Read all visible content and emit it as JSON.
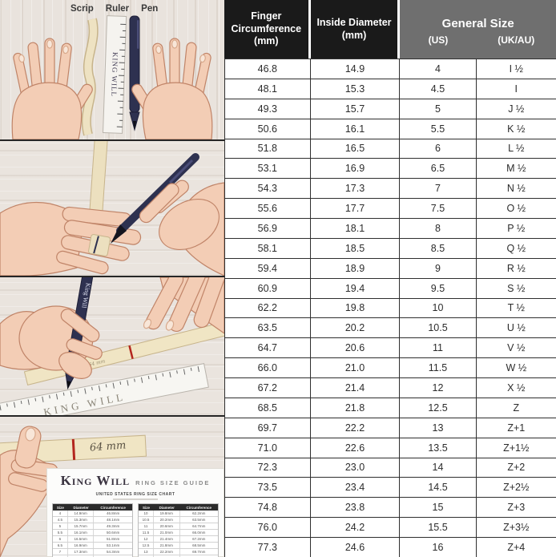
{
  "instructions": {
    "labels": [
      "Scrip",
      "Ruler",
      "Pen"
    ],
    "ruler_brand": "KING WILL",
    "pen_brand": "King Will",
    "strip_measurement": "64 mm"
  },
  "size_card": {
    "brand": "King Will",
    "product": "RING SIZE GUIDE",
    "caption": "UNITED STATES RING SIZE CHART",
    "mini_table_headers": [
      "Size",
      "Diameter",
      "Circumference"
    ],
    "mini_tables": [
      {
        "rows": [
          [
            "4",
            "14.9mm",
            "46.8mm"
          ],
          [
            "4.5",
            "15.3mm",
            "48.1mm"
          ],
          [
            "5",
            "15.7mm",
            "49.3mm"
          ],
          [
            "5.5",
            "16.1mm",
            "50.6mm"
          ],
          [
            "6",
            "16.5mm",
            "51.8mm"
          ],
          [
            "6.5",
            "16.9mm",
            "53.1mm"
          ],
          [
            "7",
            "17.3mm",
            "54.3mm"
          ],
          [
            "7.5",
            "17.7mm",
            "55.6mm"
          ],
          [
            "8",
            "18.1mm",
            "56.9mm"
          ],
          [
            "8.5",
            "18.5mm",
            "58.1mm"
          ]
        ]
      },
      {
        "rows": [
          [
            "10",
            "19.8mm",
            "62.2mm"
          ],
          [
            "10.5",
            "20.2mm",
            "63.5mm"
          ],
          [
            "11",
            "20.6mm",
            "64.7mm"
          ],
          [
            "11.5",
            "21.0mm",
            "66.0mm"
          ],
          [
            "12",
            "21.4mm",
            "67.2mm"
          ],
          [
            "12.5",
            "21.8mm",
            "68.5mm"
          ],
          [
            "13",
            "22.2mm",
            "69.7mm"
          ],
          [
            "13.5",
            "22.6mm",
            "71.0mm"
          ],
          [
            "14",
            "23.0mm",
            "72.3mm"
          ],
          [
            "14.5",
            "23.4mm",
            "73.5mm"
          ]
        ]
      }
    ]
  },
  "table": {
    "headers": {
      "col1": "Finger Circumference",
      "col1_unit": "(mm)",
      "col2": "Inside Diameter",
      "col2_unit": "(mm)",
      "group": "General Size",
      "sub1": "(US)",
      "sub2": "(UK/AU)"
    },
    "rows": [
      [
        "46.8",
        "14.9",
        "4",
        "I ½"
      ],
      [
        "48.1",
        "15.3",
        "4.5",
        "I"
      ],
      [
        "49.3",
        "15.7",
        "5",
        "J ½"
      ],
      [
        "50.6",
        "16.1",
        "5.5",
        "K ½"
      ],
      [
        "51.8",
        "16.5",
        "6",
        "L ½"
      ],
      [
        "53.1",
        "16.9",
        "6.5",
        "M ½"
      ],
      [
        "54.3",
        "17.3",
        "7",
        "N ½"
      ],
      [
        "55.6",
        "17.7",
        "7.5",
        "O ½"
      ],
      [
        "56.9",
        "18.1",
        "8",
        "P ½"
      ],
      [
        "58.1",
        "18.5",
        "8.5",
        "Q ½"
      ],
      [
        "59.4",
        "18.9",
        "9",
        "R ½"
      ],
      [
        "60.9",
        "19.4",
        "9.5",
        "S ½"
      ],
      [
        "62.2",
        "19.8",
        "10",
        "T ½"
      ],
      [
        "63.5",
        "20.2",
        "10.5",
        "U ½"
      ],
      [
        "64.7",
        "20.6",
        "11",
        "V ½"
      ],
      [
        "66.0",
        "21.0",
        "11.5",
        "W ½"
      ],
      [
        "67.2",
        "21.4",
        "12",
        "X ½"
      ],
      [
        "68.5",
        "21.8",
        "12.5",
        "Z"
      ],
      [
        "69.7",
        "22.2",
        "13",
        "Z+1"
      ],
      [
        "71.0",
        "22.6",
        "13.5",
        "Z+1½"
      ],
      [
        "72.3",
        "23.0",
        "14",
        "Z+2"
      ],
      [
        "73.5",
        "23.4",
        "14.5",
        "Z+2½"
      ],
      [
        "74.8",
        "23.8",
        "15",
        "Z+3"
      ],
      [
        "76.0",
        "24.2",
        "15.5",
        "Z+3½"
      ],
      [
        "77.3",
        "24.6",
        "16",
        "Z+4"
      ]
    ]
  },
  "colors": {
    "header_black": "#1a1a1a",
    "header_gray": "#6f6f6f",
    "table_border": "#2f2f2f",
    "pen_navy": "#2e3150",
    "strip_cream": "#efe3c2",
    "mark_red": "#b3261e",
    "skin": "#f3cdb5",
    "wood": "#e9e3dd"
  }
}
